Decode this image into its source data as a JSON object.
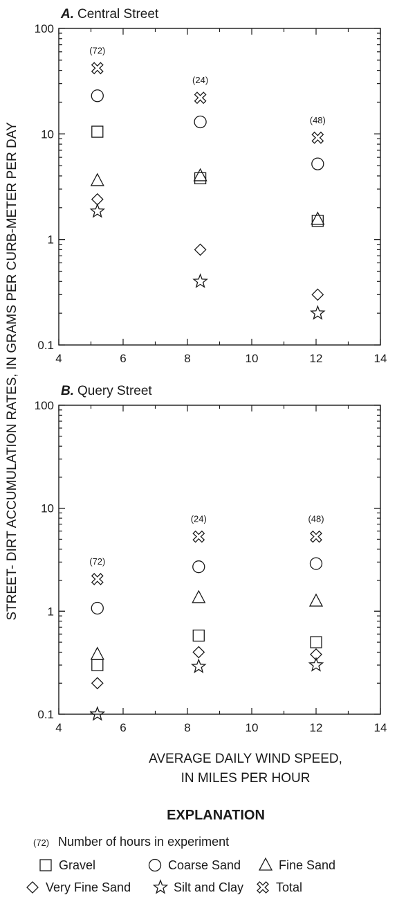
{
  "chart_data": {
    "type": "scatter",
    "x_scale": "linear",
    "y_scale": "log",
    "xlim": [
      4,
      14
    ],
    "ylim": [
      0.1,
      100
    ],
    "x_ticks": [
      "4",
      "6",
      "8",
      "10",
      "12",
      "14"
    ],
    "y_ticks": [
      "0.1",
      "1",
      "10",
      "100"
    ],
    "xlabel_lines": [
      "AVERAGE DAILY WIND SPEED,",
      "IN MILES PER HOUR"
    ],
    "ylabel": "STREET- DIRT ACCUMULATION RATES, IN GRAMS PER CURB-METER PER DAY",
    "panels": [
      {
        "letter": "A.",
        "title": "Central Street",
        "x": [
          5.2,
          8.4,
          12.05
        ],
        "hours": [
          "(72)",
          "(24)",
          "(48)"
        ],
        "series": [
          {
            "name": "Gravel",
            "marker": "square",
            "values": [
              10.5,
              3.8,
              1.5
            ]
          },
          {
            "name": "Coarse Sand",
            "marker": "circle",
            "values": [
              23,
              13,
              5.2
            ]
          },
          {
            "name": "Fine Sand",
            "marker": "triangle",
            "values": [
              3.6,
              4.0,
              1.55
            ]
          },
          {
            "name": "Very Fine Sand",
            "marker": "diamond",
            "values": [
              2.4,
              0.8,
              0.3
            ]
          },
          {
            "name": "Silt and Clay",
            "marker": "star",
            "values": [
              1.85,
              0.4,
              0.2
            ]
          },
          {
            "name": "Total",
            "marker": "cross",
            "values": [
              42,
              22,
              9.2
            ]
          }
        ]
      },
      {
        "letter": "B.",
        "title": "Query Street",
        "x": [
          5.2,
          8.35,
          12.0
        ],
        "hours": [
          "(72)",
          "(24)",
          "(48)"
        ],
        "series": [
          {
            "name": "Gravel",
            "marker": "square",
            "values": [
              0.3,
              0.58,
              0.5
            ]
          },
          {
            "name": "Coarse Sand",
            "marker": "circle",
            "values": [
              1.07,
              2.7,
              2.9
            ]
          },
          {
            "name": "Fine Sand",
            "marker": "triangle",
            "values": [
              0.38,
              1.35,
              1.25
            ]
          },
          {
            "name": "Very Fine Sand",
            "marker": "diamond",
            "values": [
              0.2,
              0.4,
              0.38
            ]
          },
          {
            "name": "Silt and Clay",
            "marker": "star",
            "values": [
              0.1,
              0.29,
              0.3
            ]
          },
          {
            "name": "Total",
            "marker": "cross",
            "values": [
              2.05,
              5.3,
              5.3
            ]
          }
        ]
      }
    ]
  },
  "explanation": {
    "title": "EXPLANATION",
    "hours_symbol": "(72)",
    "hours_text": "Number of hours in experiment",
    "items": [
      {
        "marker": "square",
        "label": "Gravel"
      },
      {
        "marker": "circle",
        "label": "Coarse Sand"
      },
      {
        "marker": "triangle",
        "label": "Fine Sand"
      },
      {
        "marker": "diamond",
        "label": "Very Fine Sand"
      },
      {
        "marker": "star",
        "label": "Silt and Clay"
      },
      {
        "marker": "cross",
        "label": "Total"
      }
    ]
  }
}
